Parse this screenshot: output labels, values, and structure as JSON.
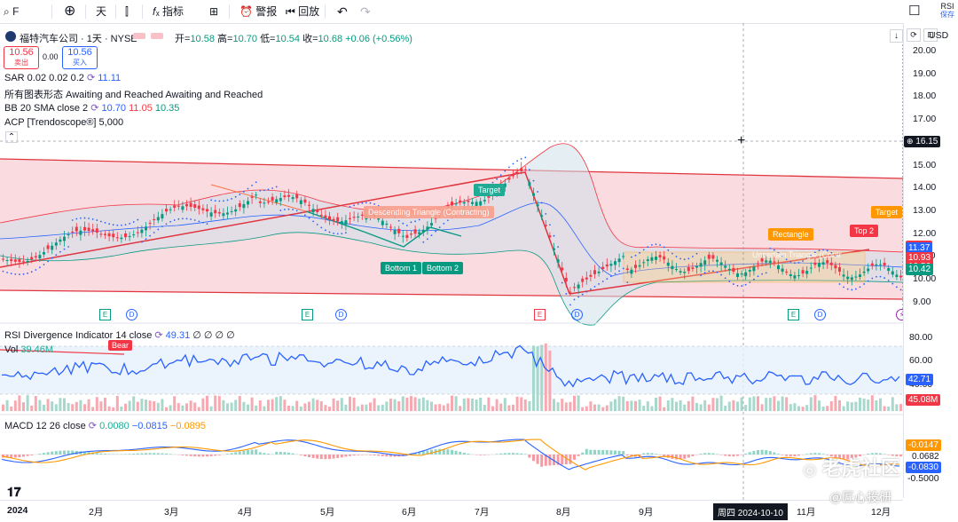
{
  "toolbar": {
    "symbol_search": "F",
    "interval": "天",
    "indicators": "指标",
    "alerts": "警报",
    "replay": "回放",
    "rsi_badge_top": "RSI",
    "rsi_badge_bottom": "保存"
  },
  "legend": {
    "title": "福特汽车公司 · 1天 · NYSE",
    "open_label": "开=",
    "open": "10.58",
    "high_label": "高=",
    "high": "10.70",
    "low_label": "低=",
    "low": "10.54",
    "close_label": "收=",
    "close": "10.68",
    "change": "+0.06 (+0.56%)",
    "sell_price": "10.56",
    "sell_label": "卖出",
    "spread": "0.00",
    "buy_price": "10.56",
    "buy_label": "买入",
    "sar": "SAR 0.02 0.02 0.2",
    "sar_value": "11.11",
    "patterns": "所有图表形态 Awaiting and Reached Awaiting and Reached",
    "bb": "BB 20 SMA close 2",
    "bb_mid": "10.70",
    "bb_up": "11.05",
    "bb_low": "10.35",
    "acp": "ACP [Trendoscope®] 5,000",
    "rsi": "RSI Divergence Indicator 14 close",
    "rsi_value": "49.31",
    "rsi_extra": "∅ ∅ ∅ ∅",
    "vol": "Vol",
    "vol_value": "39.46M",
    "macd": "MACD 12 26 close",
    "macd_v1": "0.0080",
    "macd_v2": "−0.0815",
    "macd_v3": "−0.0895"
  },
  "right_scale": {
    "currency": "USD",
    "ticks": [
      "20.00",
      "19.00",
      "18.00",
      "17.00",
      "16.00",
      "15.00",
      "14.00",
      "13.00",
      "12.00",
      "11.00",
      "10.00",
      "9.00"
    ],
    "crosshair_price": "16.15",
    "badges": [
      {
        "text": "11.45",
        "color": "#f23645"
      },
      {
        "text": "11.37",
        "color": "#2962ff"
      },
      {
        "text": "10.93",
        "color": "#f23645"
      },
      {
        "text": "10.56",
        "color": "#f23645"
      },
      {
        "text": "10.42",
        "color": "#089981"
      }
    ],
    "rsi_ticks": [
      "80.00",
      "60.00",
      "40.00"
    ],
    "rsi_badge": "42.71",
    "vol_badge": "45.08M",
    "macd_badges": [
      {
        "text": "-0.0147",
        "color": "#ff9800"
      },
      {
        "text": "0.0682",
        "color": "#ffffff"
      },
      {
        "text": "-0.0830",
        "color": "#2962ff"
      }
    ],
    "macd_tick": "-0.5000"
  },
  "x_axis": {
    "labels": [
      "2024",
      "2月",
      "3月",
      "4月",
      "5月",
      "6月",
      "7月",
      "8月",
      "9月",
      "11月",
      "12月"
    ],
    "crosshair_date": "周四 2024-10-10"
  },
  "annotations": {
    "target1": "Target",
    "descending_triangle": "Descending Triangle (Contracting)",
    "bottom1": "Bottom 1",
    "bottom2": "Bottom 2",
    "rectangle": "Rectangle",
    "top2": "Top 2",
    "target2": "Target",
    "uncertain": "Uncertain Triangle (Contr",
    "bear": "Bear"
  },
  "events": [
    "E",
    "D",
    "E",
    "D",
    "E",
    "D",
    "E",
    "D"
  ],
  "watermark": {
    "text1": "老虎社区",
    "text2": "@匠心投研"
  },
  "colors": {
    "up": "#089981",
    "down": "#f23645",
    "accent": "#2962ff",
    "channel": "#f8d0d6",
    "rsi_line": "#2962ff",
    "orange": "#ff9800"
  }
}
